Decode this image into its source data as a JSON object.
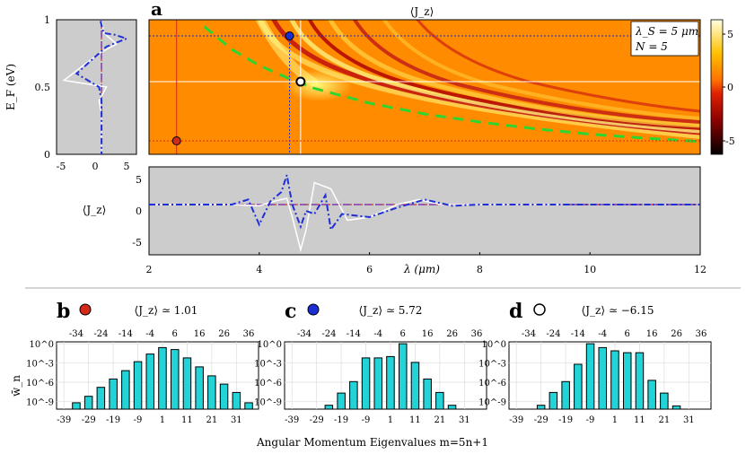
{
  "labels": {
    "a": "a",
    "b": "b",
    "c": "c",
    "d": "d",
    "heatmap_title": "⟨J_z⟩",
    "ylabel_EF": "E_F (eV)",
    "ylabel_Jz": "⟨J_z⟩",
    "xlabel_lambda": "λ (μm)",
    "legend_line1": "λ_S = 5 μm",
    "legend_line2": "N = 5",
    "ylabel_wn": "w̄_n",
    "xlabel_bottom": "Angular Momentum Eigenvalues   m=5n+1",
    "title_b": "⟨J_z⟩ ≃ 1.01",
    "title_c": "⟨J_z⟩ ≃ 5.72",
    "title_d": "⟨J_z⟩ ≃ −6.15"
  },
  "colors": {
    "histogram_bar": "#22d3d8",
    "plot_background": "#cccccc",
    "blue_dashdot": "#1f2fd6",
    "green_dashed": "#2fd42f",
    "red_dotted": "#e0301a",
    "marker_red": "#d42a1a",
    "marker_blue": "#1a2fd4",
    "purple_dashed": "#8040b0"
  },
  "chart_data": [
    {
      "id": "a",
      "type": "heatmap",
      "title": "⟨J_z⟩",
      "xlim": [
        2,
        12
      ],
      "ylim": [
        0,
        1
      ],
      "yticks": [
        "0",
        "0.5",
        "1"
      ],
      "colorbar_ticks": [
        "5",
        "0",
        "-5"
      ],
      "colorbar_range": [
        -6,
        6
      ],
      "markers": [
        {
          "color": "red",
          "lambda": 2.5,
          "EF": 0.1
        },
        {
          "color": "blue",
          "lambda": 4.55,
          "EF": 0.88
        },
        {
          "color": "white",
          "lambda": 4.75,
          "EF": 0.54
        }
      ],
      "green_curve": {
        "lambda": [
          3.0,
          3.5,
          4.0,
          4.5,
          5.0,
          6.0,
          7.0,
          8.0,
          9.0,
          10.0,
          11.0,
          12.0
        ],
        "EF": [
          0.95,
          0.78,
          0.66,
          0.57,
          0.49,
          0.38,
          0.3,
          0.24,
          0.19,
          0.15,
          0.12,
          0.095
        ]
      }
    },
    {
      "id": "a_left",
      "type": "line",
      "xlim": [
        -8,
        8
      ],
      "ylim": [
        0,
        1
      ],
      "xticks": [
        "-5",
        "0",
        "5"
      ],
      "series": [
        {
          "style": "blue-dashdot",
          "x": [
            0.8,
            1.2,
            1.5,
            3.5,
            6.0,
            2.0,
            -4.0,
            0.5,
            1.0,
            1.0,
            1.0
          ],
          "y": [
            0.99,
            0.93,
            0.9,
            0.89,
            0.86,
            0.8,
            0.6,
            0.5,
            0.4,
            0.2,
            0.0
          ]
        },
        {
          "style": "white",
          "x": [
            1.0,
            1.5,
            4.0,
            0.5,
            -6.5,
            2.0,
            0.5,
            1.0,
            1.0
          ],
          "y": [
            0.99,
            0.9,
            0.82,
            0.75,
            0.55,
            0.5,
            0.4,
            0.3,
            0.0
          ]
        }
      ]
    },
    {
      "id": "a_bottom",
      "type": "line",
      "xlim": [
        2,
        12
      ],
      "ylim": [
        -7,
        7
      ],
      "xticks": [
        "2",
        "4",
        "6",
        "8",
        "10",
        "12"
      ],
      "yticks": [
        "5",
        "0",
        "-5"
      ],
      "series": [
        {
          "style": "blue-dashdot",
          "x": [
            2,
            3.5,
            3.8,
            4.0,
            4.2,
            4.4,
            4.5,
            4.6,
            4.75,
            4.85,
            5.0,
            5.2,
            5.3,
            5.5,
            6.0,
            6.5,
            7.0,
            7.5,
            8.0,
            9.0,
            12
          ],
          "y": [
            1,
            1,
            1.8,
            -2.2,
            1.5,
            3.0,
            5.7,
            1.0,
            -2.5,
            0.0,
            -0.5,
            2.5,
            -3.0,
            -0.5,
            -1.0,
            0.5,
            1.8,
            0.8,
            1.0,
            1.0,
            1.0
          ]
        },
        {
          "style": "white",
          "x": [
            2,
            3.5,
            4.0,
            4.3,
            4.5,
            4.6,
            4.75,
            4.85,
            5.0,
            5.3,
            5.6,
            6.0,
            6.5,
            6.9,
            7.3,
            8.0,
            9.0,
            9.5
          ],
          "y": [
            1,
            1,
            0.8,
            1.6,
            2.0,
            -1.0,
            -6.2,
            -3.0,
            4.5,
            3.5,
            -1.5,
            -1.0,
            1.0,
            1.8,
            1.0,
            1.0,
            1.0,
            1.0
          ]
        }
      ]
    },
    {
      "id": "b",
      "type": "bar",
      "title": "⟨J_z⟩ ≃ 1.01",
      "bottom_ticks": [
        "-39",
        "-29",
        "-19",
        "-9",
        "1",
        "11",
        "21",
        "31"
      ],
      "top_ticks": [
        "-34",
        "-24",
        "-14",
        "-4",
        "6",
        "16",
        "26",
        "36"
      ],
      "y_ticks": [
        "10^0",
        "10^-3",
        "10^-6",
        "10^-9"
      ],
      "m": [
        -34,
        -29,
        -24,
        -19,
        -14,
        -9,
        -4,
        1,
        6,
        11,
        16,
        21,
        26,
        31,
        36
      ],
      "log10_w": [
        -9.2,
        -8.2,
        -6.8,
        -5.5,
        -4.2,
        -2.8,
        -1.6,
        -0.6,
        -0.9,
        -2.2,
        -3.6,
        -5.0,
        -6.3,
        -7.6,
        -9.2
      ]
    },
    {
      "id": "c",
      "type": "bar",
      "title": "⟨J_z⟩ ≃ 5.72",
      "bottom_ticks": [
        "-39",
        "-29",
        "-19",
        "-9",
        "1",
        "11",
        "21",
        "31"
      ],
      "top_ticks": [
        "-34",
        "-24",
        "-14",
        "-4",
        "6",
        "16",
        "26",
        "36"
      ],
      "y_ticks": [
        "10^0",
        "10^-3",
        "10^-6",
        "10^-9"
      ],
      "m": [
        -24,
        -19,
        -14,
        -9,
        -4,
        1,
        6,
        11,
        16,
        21,
        26
      ],
      "log10_w": [
        -9.6,
        -7.7,
        -5.9,
        -2.2,
        -2.2,
        -2.0,
        0.0,
        -2.9,
        -5.5,
        -7.6,
        -9.6
      ]
    },
    {
      "id": "d",
      "type": "bar",
      "title": "⟨J_z⟩ ≃ −6.15",
      "bottom_ticks": [
        "-39",
        "-29",
        "-19",
        "-9",
        "1",
        "11",
        "21",
        "31"
      ],
      "top_ticks": [
        "-34",
        "-24",
        "-14",
        "-4",
        "6",
        "16",
        "26",
        "36"
      ],
      "y_ticks": [
        "10^0",
        "10^-3",
        "10^-6",
        "10^-9"
      ],
      "m": [
        -29,
        -24,
        -19,
        -14,
        -9,
        -4,
        1,
        6,
        11,
        16,
        21,
        26
      ],
      "log10_w": [
        -9.6,
        -7.6,
        -5.9,
        -3.2,
        0.0,
        -0.6,
        -1.1,
        -1.4,
        -1.4,
        -5.7,
        -7.7,
        -9.7
      ]
    }
  ]
}
